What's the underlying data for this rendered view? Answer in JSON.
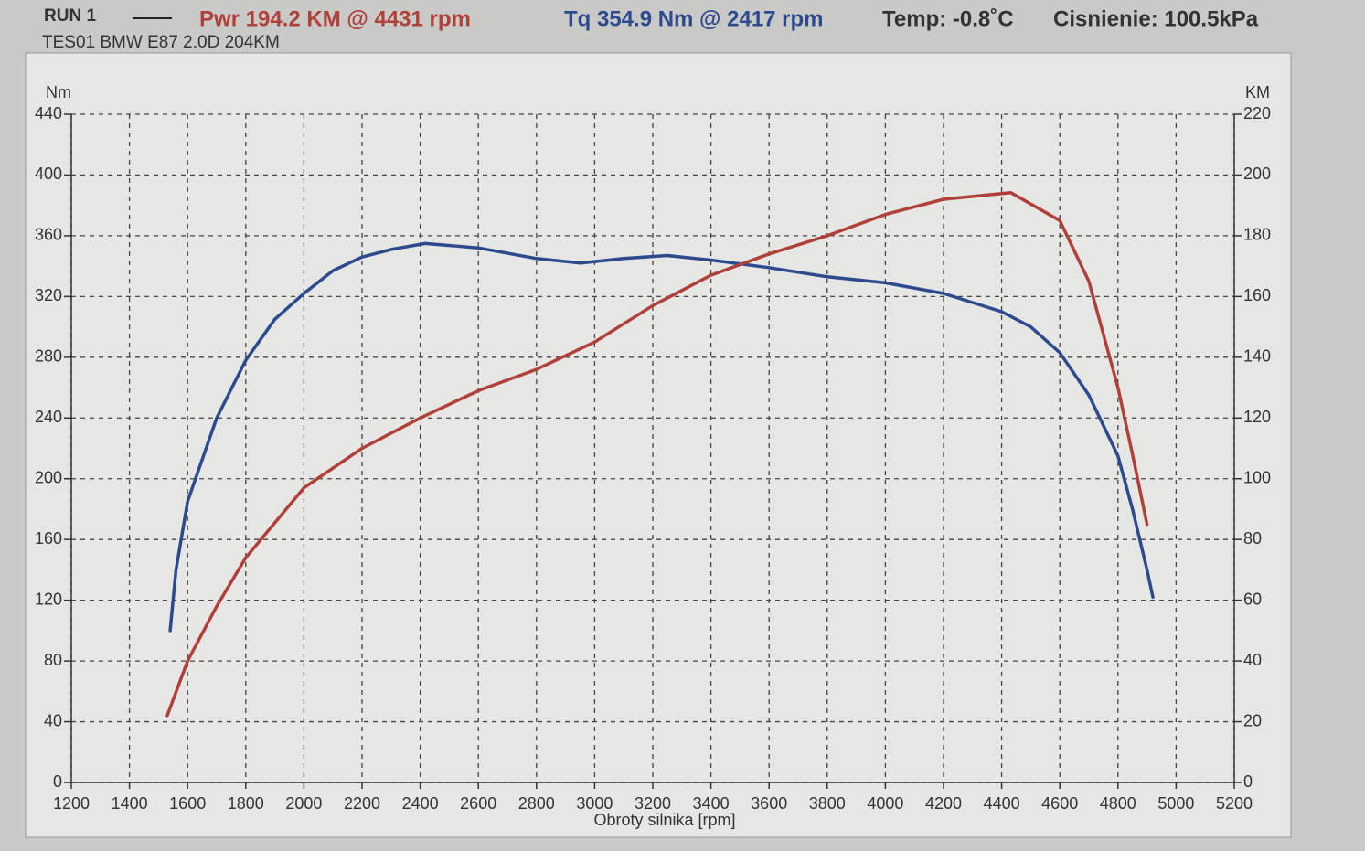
{
  "chart_data": {
    "type": "line",
    "run": "RUN 1",
    "power_summary": "Pwr  194.2 KM @ 4431 rpm",
    "torque_summary": "Tq 354.9 Nm @ 2417 rpm",
    "temperature": "Temp: -0.8˚C",
    "pressure": "Cisnienie: 100.5kPa",
    "subtitle": "TES01 BMW E87 2.0D 204KM",
    "x_label": "Obroty silnika [rpm]",
    "y_label": "Nm",
    "y2_label": "KM",
    "xlim": [
      1200,
      5200
    ],
    "xticks": [
      1200,
      1400,
      1600,
      1800,
      2000,
      2200,
      2400,
      2600,
      2800,
      3000,
      3200,
      3400,
      3600,
      3800,
      4000,
      4200,
      4400,
      4600,
      4800,
      5000,
      5200
    ],
    "ylim": [
      0,
      440
    ],
    "yticks": [
      0,
      40,
      80,
      120,
      160,
      200,
      240,
      280,
      320,
      360,
      400,
      440
    ],
    "y2lim": [
      0,
      220
    ],
    "y2ticks": [
      0,
      20,
      40,
      60,
      80,
      100,
      120,
      140,
      160,
      180,
      200,
      220
    ],
    "grid": true,
    "series": [
      {
        "color": "#2e4a8e",
        "axis": "y",
        "x": [
          1540,
          1560,
          1600,
          1700,
          1800,
          1900,
          2000,
          2100,
          2200,
          2300,
          2417,
          2600,
          2800,
          2950,
          3100,
          3250,
          3400,
          3600,
          3800,
          4000,
          4200,
          4400,
          4500,
          4600,
          4700,
          4800,
          4850,
          4900,
          4920
        ],
        "values": [
          100,
          140,
          185,
          240,
          278,
          305,
          322,
          337,
          346,
          351,
          354.9,
          352,
          345,
          342,
          345,
          347,
          344,
          339,
          333,
          329,
          322,
          310,
          300,
          283,
          255,
          215,
          180,
          140,
          122
        ]
      },
      {
        "color": "#b0403a",
        "axis": "y2",
        "x": [
          1530,
          1600,
          1700,
          1800,
          2000,
          2200,
          2400,
          2600,
          2800,
          3000,
          3200,
          3400,
          3600,
          3800,
          4000,
          4200,
          4431,
          4600,
          4700,
          4800,
          4850,
          4900
        ],
        "values": [
          22,
          40,
          58,
          74,
          97,
          110,
          120,
          129,
          136,
          145,
          157,
          167,
          174,
          180,
          187,
          192,
          194.2,
          185,
          165,
          130,
          108,
          85
        ]
      }
    ]
  }
}
